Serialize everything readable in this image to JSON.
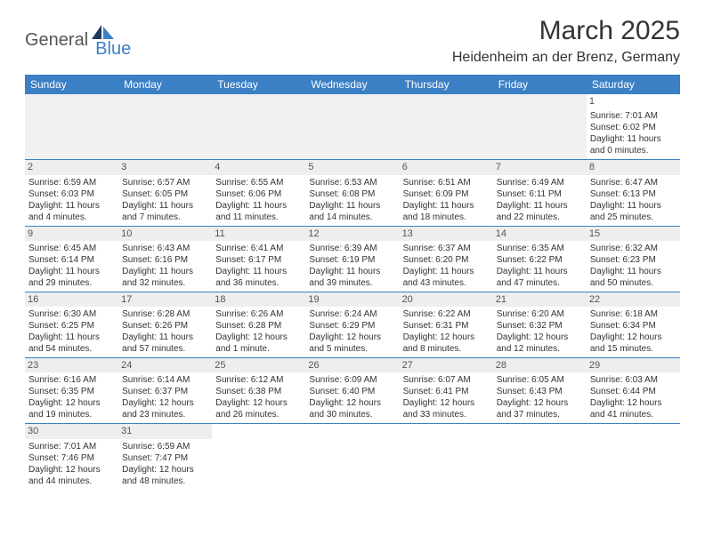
{
  "logo": {
    "part1": "General",
    "part2": "Blue"
  },
  "title": "March 2025",
  "location": "Heidenheim an der Brenz, Germany",
  "colors": {
    "header_bg": "#3b7fc4",
    "header_text": "#ffffff",
    "border": "#3b7fc4",
    "daynum_bg": "#eeeeee",
    "text": "#333333"
  },
  "day_headers": [
    "Sunday",
    "Monday",
    "Tuesday",
    "Wednesday",
    "Thursday",
    "Friday",
    "Saturday"
  ],
  "weeks": [
    [
      null,
      null,
      null,
      null,
      null,
      null,
      {
        "n": "1",
        "sr": "Sunrise: 7:01 AM",
        "ss": "Sunset: 6:02 PM",
        "d1": "Daylight: 11 hours",
        "d2": "and 0 minutes."
      }
    ],
    [
      {
        "n": "2",
        "sr": "Sunrise: 6:59 AM",
        "ss": "Sunset: 6:03 PM",
        "d1": "Daylight: 11 hours",
        "d2": "and 4 minutes."
      },
      {
        "n": "3",
        "sr": "Sunrise: 6:57 AM",
        "ss": "Sunset: 6:05 PM",
        "d1": "Daylight: 11 hours",
        "d2": "and 7 minutes."
      },
      {
        "n": "4",
        "sr": "Sunrise: 6:55 AM",
        "ss": "Sunset: 6:06 PM",
        "d1": "Daylight: 11 hours",
        "d2": "and 11 minutes."
      },
      {
        "n": "5",
        "sr": "Sunrise: 6:53 AM",
        "ss": "Sunset: 6:08 PM",
        "d1": "Daylight: 11 hours",
        "d2": "and 14 minutes."
      },
      {
        "n": "6",
        "sr": "Sunrise: 6:51 AM",
        "ss": "Sunset: 6:09 PM",
        "d1": "Daylight: 11 hours",
        "d2": "and 18 minutes."
      },
      {
        "n": "7",
        "sr": "Sunrise: 6:49 AM",
        "ss": "Sunset: 6:11 PM",
        "d1": "Daylight: 11 hours",
        "d2": "and 22 minutes."
      },
      {
        "n": "8",
        "sr": "Sunrise: 6:47 AM",
        "ss": "Sunset: 6:13 PM",
        "d1": "Daylight: 11 hours",
        "d2": "and 25 minutes."
      }
    ],
    [
      {
        "n": "9",
        "sr": "Sunrise: 6:45 AM",
        "ss": "Sunset: 6:14 PM",
        "d1": "Daylight: 11 hours",
        "d2": "and 29 minutes."
      },
      {
        "n": "10",
        "sr": "Sunrise: 6:43 AM",
        "ss": "Sunset: 6:16 PM",
        "d1": "Daylight: 11 hours",
        "d2": "and 32 minutes."
      },
      {
        "n": "11",
        "sr": "Sunrise: 6:41 AM",
        "ss": "Sunset: 6:17 PM",
        "d1": "Daylight: 11 hours",
        "d2": "and 36 minutes."
      },
      {
        "n": "12",
        "sr": "Sunrise: 6:39 AM",
        "ss": "Sunset: 6:19 PM",
        "d1": "Daylight: 11 hours",
        "d2": "and 39 minutes."
      },
      {
        "n": "13",
        "sr": "Sunrise: 6:37 AM",
        "ss": "Sunset: 6:20 PM",
        "d1": "Daylight: 11 hours",
        "d2": "and 43 minutes."
      },
      {
        "n": "14",
        "sr": "Sunrise: 6:35 AM",
        "ss": "Sunset: 6:22 PM",
        "d1": "Daylight: 11 hours",
        "d2": "and 47 minutes."
      },
      {
        "n": "15",
        "sr": "Sunrise: 6:32 AM",
        "ss": "Sunset: 6:23 PM",
        "d1": "Daylight: 11 hours",
        "d2": "and 50 minutes."
      }
    ],
    [
      {
        "n": "16",
        "sr": "Sunrise: 6:30 AM",
        "ss": "Sunset: 6:25 PM",
        "d1": "Daylight: 11 hours",
        "d2": "and 54 minutes."
      },
      {
        "n": "17",
        "sr": "Sunrise: 6:28 AM",
        "ss": "Sunset: 6:26 PM",
        "d1": "Daylight: 11 hours",
        "d2": "and 57 minutes."
      },
      {
        "n": "18",
        "sr": "Sunrise: 6:26 AM",
        "ss": "Sunset: 6:28 PM",
        "d1": "Daylight: 12 hours",
        "d2": "and 1 minute."
      },
      {
        "n": "19",
        "sr": "Sunrise: 6:24 AM",
        "ss": "Sunset: 6:29 PM",
        "d1": "Daylight: 12 hours",
        "d2": "and 5 minutes."
      },
      {
        "n": "20",
        "sr": "Sunrise: 6:22 AM",
        "ss": "Sunset: 6:31 PM",
        "d1": "Daylight: 12 hours",
        "d2": "and 8 minutes."
      },
      {
        "n": "21",
        "sr": "Sunrise: 6:20 AM",
        "ss": "Sunset: 6:32 PM",
        "d1": "Daylight: 12 hours",
        "d2": "and 12 minutes."
      },
      {
        "n": "22",
        "sr": "Sunrise: 6:18 AM",
        "ss": "Sunset: 6:34 PM",
        "d1": "Daylight: 12 hours",
        "d2": "and 15 minutes."
      }
    ],
    [
      {
        "n": "23",
        "sr": "Sunrise: 6:16 AM",
        "ss": "Sunset: 6:35 PM",
        "d1": "Daylight: 12 hours",
        "d2": "and 19 minutes."
      },
      {
        "n": "24",
        "sr": "Sunrise: 6:14 AM",
        "ss": "Sunset: 6:37 PM",
        "d1": "Daylight: 12 hours",
        "d2": "and 23 minutes."
      },
      {
        "n": "25",
        "sr": "Sunrise: 6:12 AM",
        "ss": "Sunset: 6:38 PM",
        "d1": "Daylight: 12 hours",
        "d2": "and 26 minutes."
      },
      {
        "n": "26",
        "sr": "Sunrise: 6:09 AM",
        "ss": "Sunset: 6:40 PM",
        "d1": "Daylight: 12 hours",
        "d2": "and 30 minutes."
      },
      {
        "n": "27",
        "sr": "Sunrise: 6:07 AM",
        "ss": "Sunset: 6:41 PM",
        "d1": "Daylight: 12 hours",
        "d2": "and 33 minutes."
      },
      {
        "n": "28",
        "sr": "Sunrise: 6:05 AM",
        "ss": "Sunset: 6:43 PM",
        "d1": "Daylight: 12 hours",
        "d2": "and 37 minutes."
      },
      {
        "n": "29",
        "sr": "Sunrise: 6:03 AM",
        "ss": "Sunset: 6:44 PM",
        "d1": "Daylight: 12 hours",
        "d2": "and 41 minutes."
      }
    ],
    [
      {
        "n": "30",
        "sr": "Sunrise: 7:01 AM",
        "ss": "Sunset: 7:46 PM",
        "d1": "Daylight: 12 hours",
        "d2": "and 44 minutes."
      },
      {
        "n": "31",
        "sr": "Sunrise: 6:59 AM",
        "ss": "Sunset: 7:47 PM",
        "d1": "Daylight: 12 hours",
        "d2": "and 48 minutes."
      },
      null,
      null,
      null,
      null,
      null
    ]
  ]
}
